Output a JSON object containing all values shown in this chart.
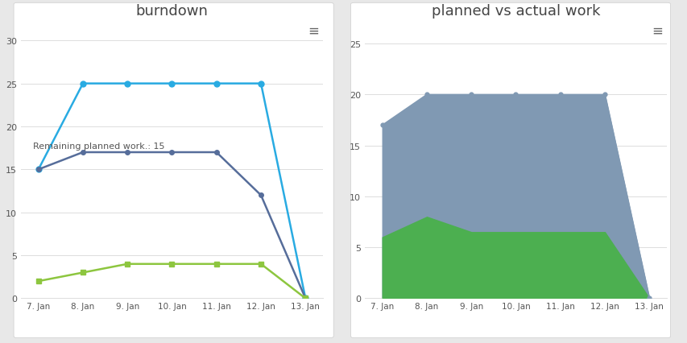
{
  "burndown": {
    "title": "burndown",
    "x_labels": [
      "7. Jan",
      "8. Jan",
      "9. Jan",
      "10. Jan",
      "11. Jan",
      "12. Jan",
      "13. Jan"
    ],
    "x_values": [
      0,
      1,
      2,
      3,
      4,
      5,
      6
    ],
    "remaining_points": [
      15,
      25,
      25,
      25,
      25,
      25,
      0
    ],
    "remaining_planned": [
      15,
      17,
      17,
      17,
      17,
      12,
      0
    ],
    "remaining_tasks": [
      2,
      3,
      4,
      4,
      4,
      4,
      0
    ],
    "annotation": "Remaining planned work.: 15",
    "ylim": [
      0,
      32
    ],
    "yticks": [
      0,
      5,
      10,
      15,
      20,
      25,
      30
    ],
    "color_points": "#29ABE2",
    "color_planned": "#566D9A",
    "color_tasks": "#8DC63F",
    "bg_color": "#FFFFFF",
    "grid_color": "#DDDDDD"
  },
  "planned_vs_actual": {
    "title": "planned vs actual work",
    "x_labels": [
      "7. Jan",
      "8. Jan",
      "9. Jan",
      "10. Jan",
      "11. Jan",
      "12. Jan",
      "13. Jan"
    ],
    "x_values": [
      0,
      1,
      2,
      3,
      4,
      5,
      6
    ],
    "planned_work": [
      17,
      20,
      20,
      20,
      20,
      20,
      0
    ],
    "actual_work": [
      6,
      8,
      6.5,
      6.5,
      6.5,
      6.5,
      0
    ],
    "ylim": [
      0,
      27
    ],
    "yticks": [
      0,
      5,
      10,
      15,
      20,
      25
    ],
    "color_planned": "#8099B3",
    "color_actual": "#4CAF50",
    "bg_color": "#FFFFFF",
    "grid_color": "#DDDDDD"
  },
  "fig_bg": "#E8E8E8",
  "hamburger_color": "#666666",
  "text_color": "#555555",
  "title_color": "#444444"
}
